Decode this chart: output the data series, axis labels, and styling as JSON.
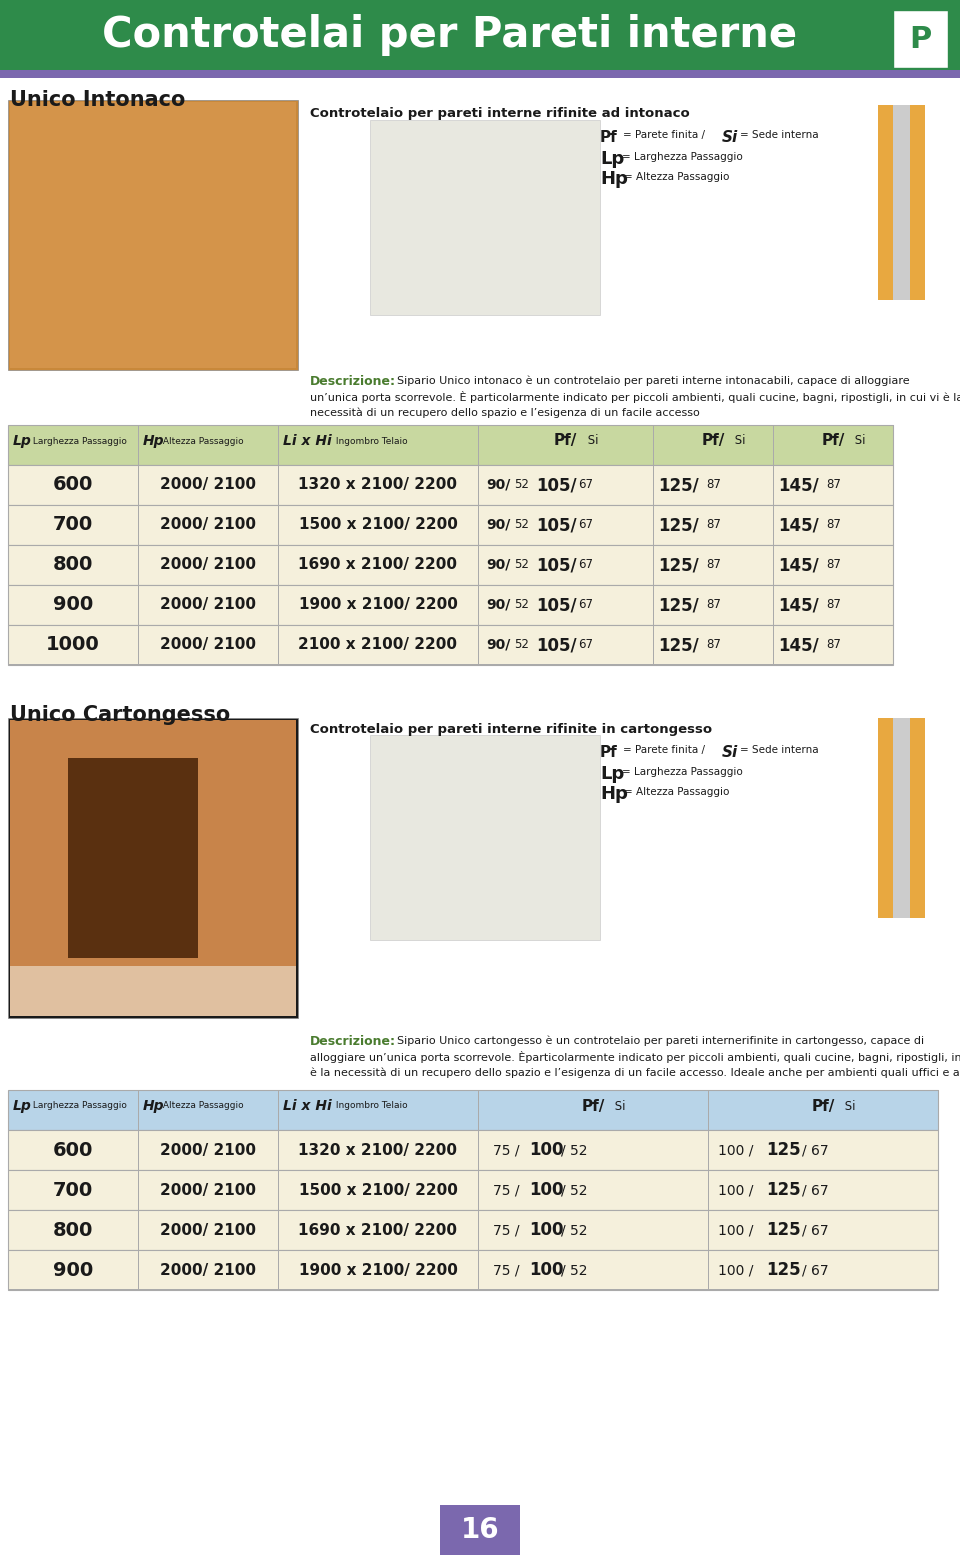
{
  "header_bg": "#2e8b4a",
  "header_stripe": "#7b68ae",
  "bg_color": "#ffffff",
  "section1_title": "Unico Intonaco",
  "section2_title": "Unico Cartongesso",
  "page_number": "16",
  "page_number_bg": "#7b68ae",
  "table1_header_bg": "#c8d8a0",
  "table1_row_bg": "#f5f0dc",
  "table2_header_bg": "#b8d4e8",
  "table2_row_bg": "#f5f0dc",
  "table_border": "#aaaaaa",
  "green_text": "#4a7c2f",
  "dark_text": "#1a1a1a",
  "section_title_color": "#1a1a1a",
  "table1_rows": [
    [
      "600",
      "2000/ 2100",
      "1320 x 2100/ 2200"
    ],
    [
      "700",
      "2000/ 2100",
      "1500 x 2100/ 2200"
    ],
    [
      "800",
      "2000/ 2100",
      "1690 x 2100/ 2200"
    ],
    [
      "900",
      "2000/ 2100",
      "1900 x 2100/ 2200"
    ],
    [
      "1000",
      "2000/ 2100",
      "2100 x 2100/ 2200"
    ]
  ],
  "table2_rows": [
    [
      "600",
      "2000/ 2100",
      "1320 x 2100/ 2200"
    ],
    [
      "700",
      "2000/ 2100",
      "1500 x 2100/ 2200"
    ],
    [
      "800",
      "2000/ 2100",
      "1690 x 2100/ 2200"
    ],
    [
      "900",
      "2000/ 2100",
      "1900 x 2100/ 2200"
    ]
  ]
}
